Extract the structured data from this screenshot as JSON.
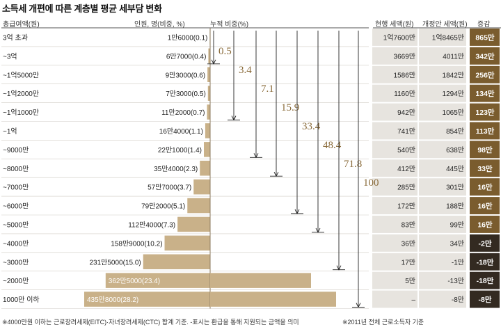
{
  "title": "소득세 개편에 따른 계층별 평균 세부담 변화",
  "headers": {
    "bracket": "총급여액(원)",
    "people": "인원, 명(비중, %)",
    "cumulative": "누적 비중(%)",
    "current": "현행 세액(원)",
    "revised": "개정안 세액(원)",
    "change": "증감"
  },
  "chart_data": {
    "type": "bar",
    "categories": [
      "3억 초과",
      "~3억",
      "~1억5000만",
      "~1억2000만",
      "~1억1000만",
      "~1억",
      "~9000만",
      "~8000만",
      "~7000만",
      "~6000만",
      "~5000만",
      "~4000만",
      "~3000만",
      "~2000만",
      "1000만 이하"
    ],
    "series": [
      {
        "name": "인원, 명(비중, %)",
        "values": [
          0.1,
          0.4,
          0.6,
          0.5,
          0.7,
          1.1,
          1.4,
          2.3,
          3.7,
          5.1,
          7.3,
          10.2,
          15.0,
          23.4,
          28.2
        ]
      }
    ],
    "people_labels": [
      "1만6000(0.1)",
      "6만7000(0.4)",
      "9만3000(0.6)",
      "7만3000(0.5)",
      "11만2000(0.7)",
      "16만4000(1.1)",
      "22만1000(1.4)",
      "35만4000(2.3)",
      "57만7000(3.7)",
      "79만2000(5.1)",
      "112만4000(7.3)",
      "158만9000(10.2)",
      "231만5000(15.0)",
      "362만5000(23.4)",
      "435만8000(28.2)"
    ],
    "cumulative": [
      {
        "value": "0.5",
        "to_row": 1
      },
      {
        "value": "3.4",
        "to_row": 4
      },
      {
        "value": "7.1",
        "to_row": 6
      },
      {
        "value": "15.9",
        "to_row": 7
      },
      {
        "value": "33.4",
        "to_row": 9
      },
      {
        "value": "48.4",
        "to_row": 10
      },
      {
        "value": "71.8",
        "to_row": 12
      },
      {
        "value": "100",
        "to_row": 14
      }
    ],
    "current_tax": [
      "1억7600만",
      "3669만",
      "1586만",
      "1160만",
      "942만",
      "741만",
      "540만",
      "412만",
      "285만",
      "172만",
      "83만",
      "36만",
      "17만",
      "5만",
      "–"
    ],
    "revised_tax": [
      "1억8465만",
      "4011만",
      "1842만",
      "1294만",
      "1065만",
      "854만",
      "638만",
      "445만",
      "301만",
      "188만",
      "99만",
      "34만",
      "-1만",
      "-13만",
      "-8만"
    ],
    "change": [
      "865만",
      "342만",
      "256만",
      "134만",
      "123만",
      "113만",
      "98만",
      "33만",
      "16만",
      "16만",
      "16만",
      "-2만",
      "-18만",
      "-18만",
      "-8만"
    ],
    "xlim": [
      0,
      28.2
    ]
  },
  "footnotes": {
    "left": "※4000만원 이하는 근로장려세제(EITC)·자녀장려세제(CTC) 합계 기준. -표시는 환급을 통해 지원되는 금액을 의미",
    "right": "※2011년 전체 근로소득자 기준"
  },
  "colors": {
    "bar": "#c9b189",
    "row_band": "#e7e4df",
    "change_positive": "#7a5c2e",
    "change_negative": "#332a21",
    "cumulative_text": "#8a6b3a",
    "divider": "#d0ccc5"
  }
}
